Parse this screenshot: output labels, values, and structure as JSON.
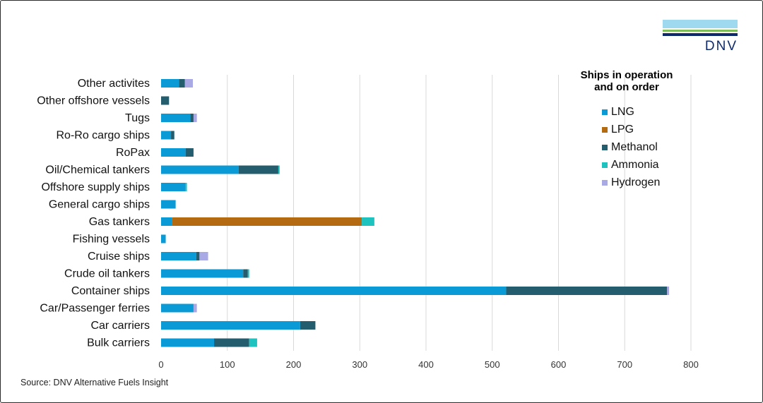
{
  "logo": {
    "text": "DNV"
  },
  "source": "Source: DNV Alternative Fuels Insight",
  "legend": {
    "title_line1": "Ships in operation",
    "title_line2": "and on order"
  },
  "colors": {
    "LNG": "#0a9ad6",
    "LPG": "#b46a10",
    "Methanol": "#245e6e",
    "Ammonia": "#1ec3c0",
    "Hydrogen": "#a9a9e6"
  },
  "chart_data": {
    "type": "bar",
    "orientation": "horizontal",
    "stacked": true,
    "title": "",
    "xlabel": "",
    "ylabel": "",
    "xlim": [
      0,
      800
    ],
    "xticks": [
      0,
      100,
      200,
      300,
      400,
      500,
      600,
      700,
      800
    ],
    "grid": "vertical",
    "legend_position": "right",
    "categories": [
      "Other activites",
      "Other offshore vessels",
      "Tugs",
      "Ro-Ro cargo ships",
      "RoPax",
      "Oil/Chemical tankers",
      "Offshore supply ships",
      "General cargo ships",
      "Gas tankers",
      "Fishing vessels",
      "Cruise ships",
      "Crude oil tankers",
      "Container ships",
      "Car/Passenger ferries",
      "Car carriers",
      "Bulk carriers"
    ],
    "series": [
      {
        "name": "LNG",
        "values": [
          27,
          0,
          44,
          15,
          37,
          117,
          37,
          22,
          17,
          7,
          53,
          124,
          521,
          49,
          210,
          80
        ]
      },
      {
        "name": "LPG",
        "values": [
          0,
          0,
          0,
          0,
          0,
          0,
          0,
          0,
          286,
          0,
          0,
          0,
          0,
          0,
          0,
          0
        ]
      },
      {
        "name": "Methanol",
        "values": [
          9,
          12,
          5,
          5,
          12,
          60,
          0,
          0,
          0,
          0,
          5,
          7,
          243,
          0,
          23,
          53
        ]
      },
      {
        "name": "Ammonia",
        "values": [
          0,
          0,
          0,
          0,
          0,
          2,
          2,
          0,
          19,
          0,
          0,
          2,
          0,
          0,
          0,
          12
        ]
      },
      {
        "name": "Hydrogen",
        "values": [
          12,
          0,
          5,
          0,
          0,
          0,
          0,
          0,
          0,
          0,
          13,
          0,
          3,
          5,
          0,
          0
        ]
      }
    ]
  }
}
